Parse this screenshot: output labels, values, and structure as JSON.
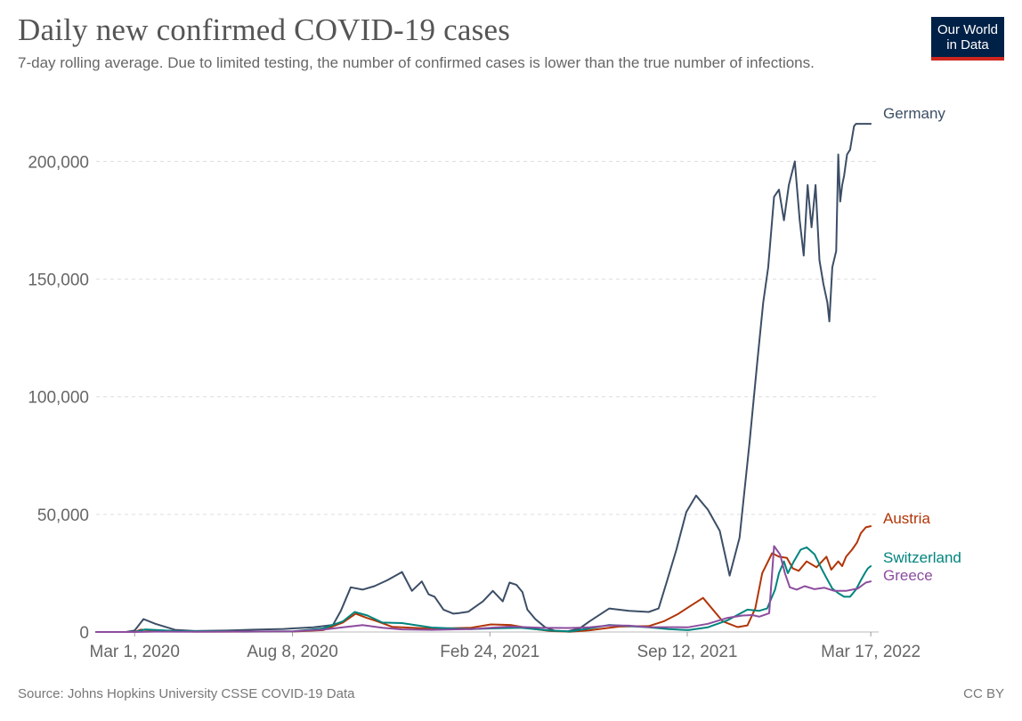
{
  "header": {
    "title": "Daily new confirmed COVID-19 cases",
    "subtitle": "7-day rolling average. Due to limited testing, the number of confirmed cases is lower than the true number of infections."
  },
  "logo": {
    "line1": "Our World",
    "line2": "in Data"
  },
  "footer": {
    "source": "Source: Johns Hopkins University CSSE COVID-19 Data",
    "license": "CC BY"
  },
  "chart_data": {
    "type": "line",
    "title": "Daily new confirmed COVID-19 cases",
    "xlabel": "",
    "ylabel": "",
    "x_unit": "days since 2020-01-22",
    "xlim": [
      0,
      793
    ],
    "ylim": [
      0,
      210000
    ],
    "grid": true,
    "legend": "inline-right",
    "y_ticks": [
      {
        "value": 0,
        "label": "0"
      },
      {
        "value": 50000,
        "label": "50,000"
      },
      {
        "value": 100000,
        "label": "100,000"
      },
      {
        "value": 150000,
        "label": "150,000"
      },
      {
        "value": 200000,
        "label": "200,000"
      }
    ],
    "x_ticks": [
      {
        "value": 39,
        "label": "Mar 1, 2020"
      },
      {
        "value": 199,
        "label": "Aug 8, 2020"
      },
      {
        "value": 399,
        "label": "Feb 24, 2021"
      },
      {
        "value": 599,
        "label": "Sep 12, 2021"
      },
      {
        "value": 785,
        "label": "Mar 17, 2022"
      }
    ],
    "series": [
      {
        "name": "Germany",
        "color": "#3c4e66",
        "x": [
          0,
          20,
          30,
          39,
          48,
          60,
          80,
          100,
          130,
          160,
          190,
          199,
          220,
          240,
          248,
          258,
          270,
          282,
          295,
          310,
          320,
          330,
          337,
          343,
          352,
          362,
          367,
          377,
          392,
          402,
          412,
          419,
          426,
          432,
          437,
          445,
          455,
          465,
          478,
          490,
          500,
          520,
          540,
          560,
          570,
          578,
          588,
          598,
          608,
          620,
          632,
          642,
          652,
          662,
          670,
          676,
          681,
          687,
          692,
          697,
          702,
          708,
          713,
          717,
          721,
          725,
          729,
          733,
          737,
          741,
          743,
          746,
          750,
          752,
          754,
          756,
          758,
          761,
          764,
          766,
          768,
          770,
          772,
          774,
          776,
          778,
          780,
          782,
          784,
          785
        ],
        "y": [
          0,
          0,
          0,
          600,
          5500,
          3500,
          900,
          400,
          600,
          1000,
          1300,
          1500,
          2000,
          3000,
          9000,
          19000,
          18000,
          19500,
          22000,
          25500,
          17500,
          21500,
          16000,
          15000,
          9500,
          7800,
          8000,
          8600,
          13000,
          17500,
          13000,
          21000,
          20000,
          17000,
          9500,
          5500,
          2000,
          500,
          300,
          1500,
          4500,
          10000,
          9000,
          8500,
          10000,
          21000,
          35000,
          51000,
          58000,
          52000,
          43000,
          24000,
          40000,
          80000,
          115000,
          140000,
          155000,
          185000,
          188000,
          175000,
          190000,
          200000,
          175000,
          160000,
          190000,
          172000,
          190000,
          158000,
          148000,
          140000,
          132000,
          155000,
          162000,
          203000,
          183000,
          190000,
          194000,
          203000,
          205000,
          210000,
          215000,
          216000,
          216000,
          216000,
          216000,
          216000,
          216000,
          216000,
          216000,
          216000
        ]
      },
      {
        "name": "Austria",
        "color": "#b13507",
        "x": [
          0,
          20,
          39,
          45,
          60,
          100,
          200,
          230,
          250,
          263,
          274,
          285,
          300,
          340,
          380,
          400,
          420,
          440,
          460,
          480,
          500,
          530,
          560,
          575,
          590,
          600,
          615,
          635,
          650,
          660,
          668,
          675,
          685,
          692,
          700,
          706,
          712,
          720,
          730,
          740,
          745,
          752,
          756,
          760,
          766,
          771,
          775,
          780,
          785
        ],
        "y": [
          0,
          0,
          0,
          1000,
          600,
          150,
          200,
          800,
          4000,
          7800,
          6000,
          4500,
          2200,
          1400,
          1800,
          3200,
          3000,
          1500,
          400,
          100,
          700,
          2300,
          2500,
          4500,
          7700,
          10500,
          14500,
          4500,
          2100,
          2800,
          10000,
          25000,
          33500,
          32000,
          31500,
          27000,
          26000,
          30000,
          27500,
          32000,
          26500,
          30000,
          28000,
          32000,
          35000,
          38000,
          42000,
          44500,
          45000
        ]
      },
      {
        "name": "Switzerland",
        "color": "#00847e",
        "x": [
          0,
          20,
          39,
          50,
          80,
          150,
          200,
          230,
          250,
          262,
          275,
          290,
          310,
          340,
          380,
          400,
          430,
          460,
          480,
          500,
          520,
          540,
          560,
          580,
          600,
          620,
          640,
          660,
          672,
          680,
          688,
          692,
          697,
          701,
          707,
          714,
          720,
          728,
          735,
          740,
          746,
          752,
          758,
          764,
          770,
          775,
          779,
          782,
          785
        ],
        "y": [
          0,
          0,
          0,
          1100,
          400,
          150,
          300,
          1500,
          4500,
          8500,
          7000,
          4000,
          3800,
          1900,
          1200,
          1500,
          1800,
          600,
          200,
          1500,
          3000,
          2500,
          2000,
          1200,
          800,
          2000,
          5000,
          9500,
          9000,
          10000,
          18000,
          25000,
          30000,
          25000,
          30000,
          35000,
          36000,
          33000,
          27000,
          23000,
          18500,
          16500,
          15000,
          15000,
          18000,
          22000,
          25000,
          27000,
          28000
        ]
      },
      {
        "name": "Greece",
        "color": "#8c4c9e",
        "x": [
          0,
          39,
          60,
          100,
          200,
          230,
          250,
          270,
          290,
          310,
          340,
          380,
          400,
          420,
          450,
          480,
          500,
          520,
          540,
          560,
          600,
          620,
          640,
          655,
          665,
          672,
          682,
          687,
          693,
          698,
          703,
          710,
          718,
          728,
          738,
          748,
          760,
          772,
          780,
          785
        ],
        "y": [
          0,
          0,
          150,
          80,
          300,
          1000,
          2000,
          2900,
          1800,
          1100,
          900,
          1200,
          1800,
          2300,
          1800,
          1700,
          2000,
          2800,
          2700,
          2100,
          2000,
          3500,
          6000,
          7000,
          7200,
          6500,
          8000,
          36500,
          33000,
          25000,
          19000,
          18000,
          19500,
          18200,
          18800,
          17500,
          17500,
          18500,
          21000,
          21500
        ]
      }
    ]
  }
}
